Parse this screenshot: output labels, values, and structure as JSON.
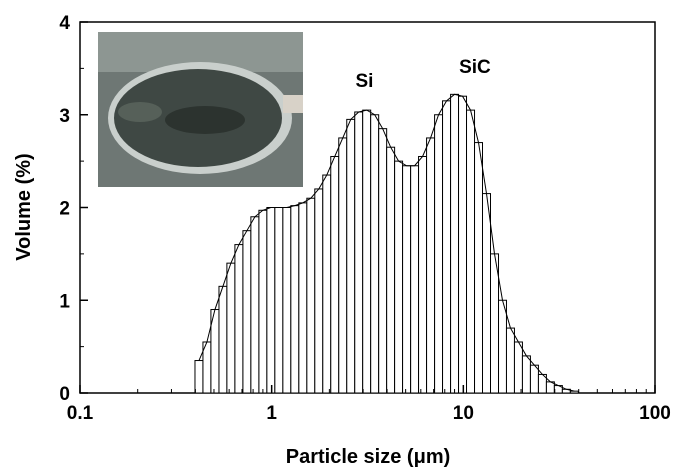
{
  "chart_data": {
    "type": "histogram",
    "xlabel": "Particle size (μm)",
    "ylabel": "Volume (%)",
    "log_x": true,
    "xlim": [
      0.1,
      100
    ],
    "xticks": [
      0.1,
      1,
      10,
      100
    ],
    "ylim": [
      0,
      4
    ],
    "yticks": [
      0,
      1,
      2,
      3,
      4
    ],
    "minor_ticks": true,
    "color": "#ffffff",
    "edge_color": "#000000",
    "bins": [
      0.398,
      0.438,
      0.482,
      0.531,
      0.584,
      0.643,
      0.708,
      0.779,
      0.858,
      0.944,
      1.039,
      1.144,
      1.259,
      1.386,
      1.526,
      1.679,
      1.848,
      2.034,
      2.239,
      2.465,
      2.713,
      2.985,
      3.286,
      3.617,
      3.981,
      4.38,
      4.82,
      5.31,
      5.84,
      6.43,
      7.08,
      7.79,
      8.58,
      9.44,
      10.39,
      11.44,
      12.59,
      13.86,
      15.26,
      16.79,
      18.48,
      20.34,
      22.39,
      24.65,
      27.13,
      29.85,
      32.86,
      36.17,
      39.81
    ],
    "values": [
      0.35,
      0.55,
      0.9,
      1.15,
      1.4,
      1.6,
      1.75,
      1.9,
      1.97,
      2.0,
      2.0,
      2.0,
      2.02,
      2.05,
      2.1,
      2.2,
      2.35,
      2.55,
      2.75,
      2.95,
      3.03,
      3.05,
      3.0,
      2.85,
      2.65,
      2.5,
      2.45,
      2.45,
      2.55,
      2.75,
      3.0,
      3.15,
      3.22,
      3.2,
      3.05,
      2.7,
      2.15,
      1.5,
      1.0,
      0.7,
      0.55,
      0.4,
      0.3,
      0.2,
      0.12,
      0.08,
      0.04,
      0.02
    ],
    "annotations": [
      {
        "text": "Si",
        "x": 3.05,
        "y": 3.3
      },
      {
        "text": "SiC",
        "x": 11.5,
        "y": 3.45
      }
    ]
  }
}
